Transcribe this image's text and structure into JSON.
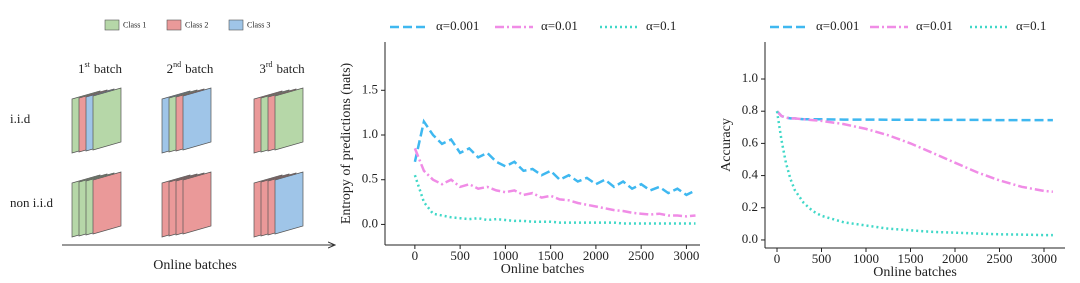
{
  "diagram": {
    "classes": [
      {
        "label": "Class 1",
        "color": "#b6d7a8"
      },
      {
        "label": "Class 2",
        "color": "#ea9999"
      },
      {
        "label": "Class 3",
        "color": "#9fc5e8"
      }
    ],
    "columns": [
      {
        "number": "1",
        "suffix": "st",
        "word": "batch"
      },
      {
        "number": "2",
        "suffix": "nd",
        "word": "batch"
      },
      {
        "number": "3",
        "suffix": "rd",
        "word": "batch"
      }
    ],
    "rows": [
      "i.i.d",
      "non i.i.d"
    ],
    "stacks": [
      [
        [
          1,
          2,
          3,
          1
        ],
        [
          3,
          1,
          2,
          3
        ],
        [
          2,
          1,
          2,
          1
        ]
      ],
      [
        [
          1,
          1,
          1,
          2
        ],
        [
          2,
          2,
          2,
          2
        ],
        [
          2,
          2,
          2,
          3
        ]
      ]
    ],
    "axis_label": "Online batches"
  },
  "chart_data": [
    {
      "type": "line",
      "xlabel": "Online batches",
      "ylabel": "Entropy of predictions (nats)",
      "legend": "top",
      "x": [
        0,
        100,
        200,
        300,
        400,
        500,
        600,
        700,
        800,
        900,
        1000,
        1100,
        1200,
        1300,
        1400,
        1500,
        1600,
        1700,
        1800,
        1900,
        2000,
        2100,
        2200,
        2300,
        2400,
        2500,
        2600,
        2700,
        2800,
        2900,
        3000,
        3100
      ],
      "xlim": [
        -330,
        3150
      ],
      "xticks": [
        0,
        500,
        1000,
        1500,
        2000,
        2500,
        3000
      ],
      "ylim": [
        -0.23,
        2.04
      ],
      "yticks": [
        {
          "value": 0,
          "label": "0.0"
        },
        0.5,
        {
          "value": 1,
          "label": "1.0"
        },
        1.5
      ],
      "series": [
        {
          "name": "α=0.001",
          "color": "#3fb8f0",
          "dash": "dashed",
          "values": [
            0.7,
            1.15,
            1.0,
            0.9,
            0.95,
            0.8,
            0.85,
            0.75,
            0.8,
            0.7,
            0.65,
            0.7,
            0.6,
            0.62,
            0.55,
            0.6,
            0.5,
            0.55,
            0.48,
            0.52,
            0.45,
            0.5,
            0.42,
            0.48,
            0.4,
            0.45,
            0.38,
            0.42,
            0.35,
            0.4,
            0.33,
            0.38
          ]
        },
        {
          "name": "α=0.01",
          "color": "#f08ce6",
          "dash": "dashdot",
          "values": [
            0.85,
            0.6,
            0.5,
            0.45,
            0.5,
            0.42,
            0.45,
            0.4,
            0.42,
            0.38,
            0.36,
            0.38,
            0.33,
            0.35,
            0.3,
            0.32,
            0.28,
            0.27,
            0.24,
            0.22,
            0.2,
            0.18,
            0.16,
            0.15,
            0.13,
            0.12,
            0.11,
            0.12,
            0.1,
            0.1,
            0.09,
            0.1
          ]
        },
        {
          "name": "α=0.1",
          "color": "#40d8c8",
          "dash": "dotted",
          "values": [
            0.55,
            0.25,
            0.12,
            0.1,
            0.08,
            0.07,
            0.06,
            0.07,
            0.05,
            0.06,
            0.05,
            0.04,
            0.04,
            0.03,
            0.03,
            0.03,
            0.02,
            0.02,
            0.02,
            0.02,
            0.02,
            0.02,
            0.02,
            0.01,
            0.01,
            0.01,
            0.01,
            0.01,
            0.01,
            0.01,
            0.01,
            0.01
          ]
        }
      ]
    },
    {
      "type": "line",
      "xlabel": "Online batches",
      "ylabel": "Accuracy",
      "legend": "top",
      "x": [
        0,
        50,
        100,
        150,
        200,
        300,
        400,
        500,
        750,
        1000,
        1250,
        1500,
        1750,
        2000,
        2250,
        2500,
        2750,
        3000,
        3100
      ],
      "xlim": [
        -135,
        3236
      ],
      "xticks": [
        0,
        500,
        1000,
        1500,
        2000,
        2500,
        3000
      ],
      "ylim": [
        -0.05,
        1.23
      ],
      "yticks": [
        {
          "value": 0,
          "label": "0.0"
        },
        0.2,
        0.4,
        0.6,
        0.8,
        {
          "value": 1,
          "label": "1.0"
        }
      ],
      "series": [
        {
          "name": "α=0.001",
          "color": "#3fb8f0",
          "dash": "dashed",
          "values": [
            0.8,
            0.77,
            0.76,
            0.755,
            0.755,
            0.75,
            0.75,
            0.75,
            0.748,
            0.748,
            0.747,
            0.747,
            0.746,
            0.746,
            0.746,
            0.745,
            0.745,
            0.745,
            0.745
          ]
        },
        {
          "name": "α=0.01",
          "color": "#f08ce6",
          "dash": "dashdot",
          "values": [
            0.8,
            0.77,
            0.76,
            0.755,
            0.755,
            0.75,
            0.745,
            0.74,
            0.72,
            0.69,
            0.65,
            0.6,
            0.54,
            0.48,
            0.42,
            0.37,
            0.33,
            0.305,
            0.3
          ]
        },
        {
          "name": "α=0.1",
          "color": "#40d8c8",
          "dash": "dotted",
          "values": [
            0.8,
            0.62,
            0.48,
            0.38,
            0.31,
            0.23,
            0.18,
            0.15,
            0.11,
            0.09,
            0.07,
            0.06,
            0.05,
            0.045,
            0.04,
            0.035,
            0.033,
            0.03,
            0.03
          ]
        }
      ]
    }
  ]
}
